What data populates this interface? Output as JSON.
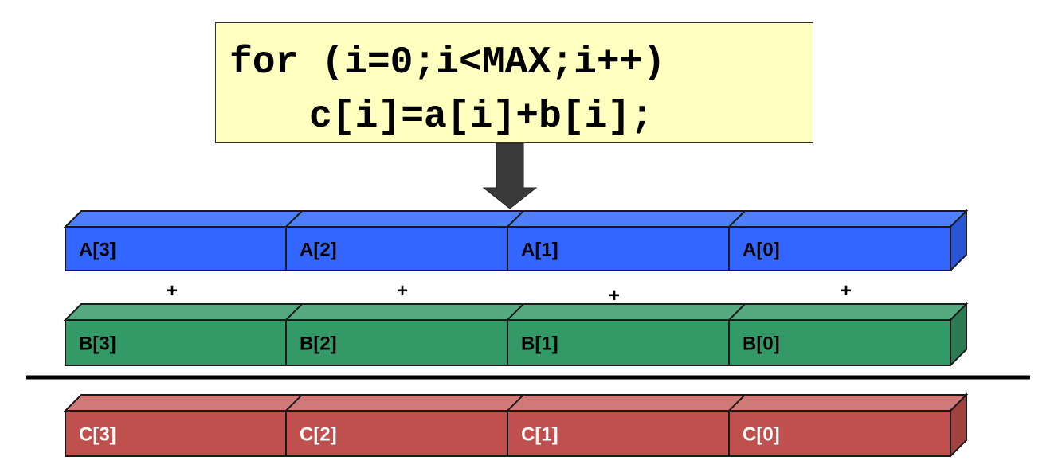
{
  "code": {
    "line1": "for (i=0;i<MAX;i++)",
    "line2": "c[i]=a[i]+b[i];",
    "box_color": "#ffffc0"
  },
  "arrow": {
    "color": "#3a3a3a"
  },
  "rows": {
    "a": {
      "labels": [
        "A[3]",
        "A[2]",
        "A[1]",
        "A[0]"
      ],
      "face": "#3366ff",
      "top": "#4f7fff",
      "side": "#2a55d6",
      "text": "#000000"
    },
    "b": {
      "labels": [
        "B[3]",
        "B[2]",
        "B[1]",
        "B[0]"
      ],
      "face": "#339966",
      "top": "#55aa80",
      "side": "#2a7a52",
      "text": "#000000"
    },
    "c": {
      "labels": [
        "C[3]",
        "C[2]",
        "C[1]",
        "C[0]"
      ],
      "face": "#c0504d",
      "top": "#d07a78",
      "side": "#a04240",
      "text": "#ffffff"
    }
  },
  "operators": [
    "+",
    "+",
    "+",
    "+"
  ],
  "divider": {
    "color": "#000000"
  }
}
